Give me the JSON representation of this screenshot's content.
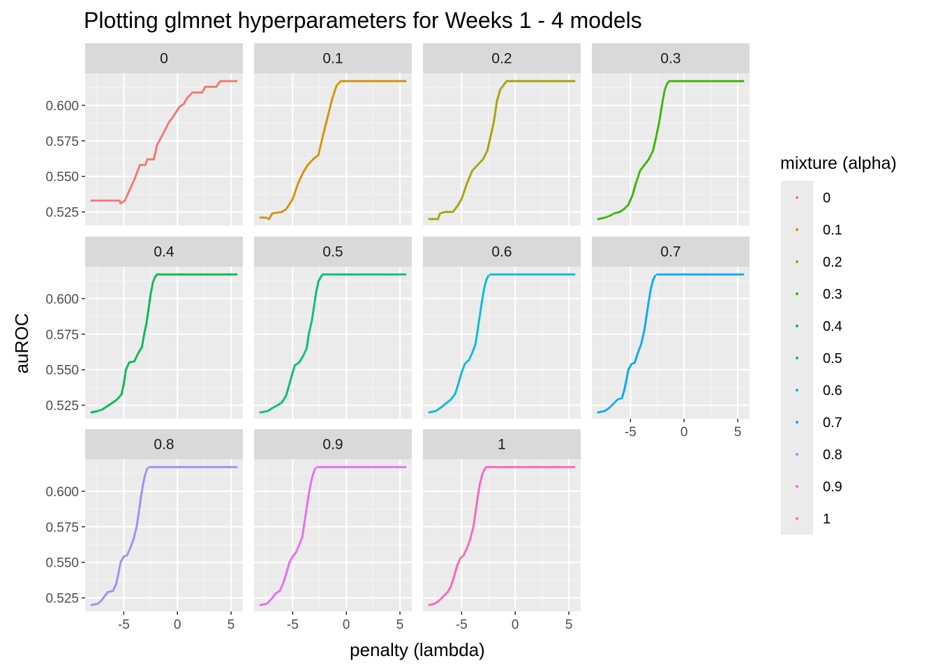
{
  "chart_data": {
    "type": "scatter",
    "title": "Plotting glmnet hyperparameters for Weeks 1 - 4 models",
    "xlabel": "penalty (lambda)",
    "ylabel": "auROC",
    "xlim": [
      -8.6,
      6.1
    ],
    "ylim": [
      0.5155,
      0.6225
    ],
    "x_ticks": [
      -5,
      0,
      5
    ],
    "x_tick_labels": [
      "-5",
      "0",
      "5"
    ],
    "y_ticks": [
      0.525,
      0.55,
      0.575,
      0.6
    ],
    "y_tick_labels": [
      "0.525",
      "0.550",
      "0.575",
      "0.600"
    ],
    "grid": true,
    "legend": {
      "title": "mixture (alpha)",
      "position": "right"
    },
    "facets": [
      {
        "label": "0",
        "color": "#F8766D",
        "points": [
          [
            -8.0,
            0.533
          ],
          [
            -5.4,
            0.533
          ],
          [
            -5.3,
            0.531
          ],
          [
            -4.9,
            0.533
          ],
          [
            -4.6,
            0.538
          ],
          [
            -4.0,
            0.548
          ],
          [
            -3.5,
            0.558
          ],
          [
            -3.0,
            0.558
          ],
          [
            -2.8,
            0.562
          ],
          [
            -2.2,
            0.562
          ],
          [
            -1.9,
            0.572
          ],
          [
            -1.2,
            0.582
          ],
          [
            -0.8,
            0.588
          ],
          [
            -0.4,
            0.592
          ],
          [
            0.2,
            0.599
          ],
          [
            0.6,
            0.601
          ],
          [
            0.9,
            0.605
          ],
          [
            1.4,
            0.609
          ],
          [
            2.3,
            0.609
          ],
          [
            2.6,
            0.613
          ],
          [
            3.6,
            0.613
          ],
          [
            4.0,
            0.617
          ],
          [
            5.5,
            0.617
          ]
        ]
      },
      {
        "label": "0.1",
        "color": "#D89000",
        "points": [
          [
            -8.0,
            0.521
          ],
          [
            -7.5,
            0.521
          ],
          [
            -7.2,
            0.52
          ],
          [
            -6.9,
            0.524
          ],
          [
            -6.0,
            0.525
          ],
          [
            -5.6,
            0.527
          ],
          [
            -5.0,
            0.534
          ],
          [
            -4.5,
            0.545
          ],
          [
            -4.0,
            0.553
          ],
          [
            -3.6,
            0.558
          ],
          [
            -3.1,
            0.562
          ],
          [
            -2.6,
            0.565
          ],
          [
            -2.2,
            0.578
          ],
          [
            -1.8,
            0.59
          ],
          [
            -1.3,
            0.605
          ],
          [
            -0.9,
            0.614
          ],
          [
            -0.5,
            0.617
          ],
          [
            5.5,
            0.617
          ]
        ]
      },
      {
        "label": "0.2",
        "color": "#A3A500",
        "points": [
          [
            -8.0,
            0.52
          ],
          [
            -7.2,
            0.52
          ],
          [
            -7.0,
            0.524
          ],
          [
            -6.5,
            0.525
          ],
          [
            -5.8,
            0.525
          ],
          [
            -5.4,
            0.529
          ],
          [
            -5.0,
            0.534
          ],
          [
            -4.5,
            0.545
          ],
          [
            -4.0,
            0.554
          ],
          [
            -3.5,
            0.558
          ],
          [
            -3.0,
            0.562
          ],
          [
            -2.6,
            0.568
          ],
          [
            -2.3,
            0.578
          ],
          [
            -2.0,
            0.588
          ],
          [
            -1.7,
            0.603
          ],
          [
            -1.4,
            0.611
          ],
          [
            -1.0,
            0.615
          ],
          [
            -0.8,
            0.617
          ],
          [
            5.5,
            0.617
          ]
        ]
      },
      {
        "label": "0.3",
        "color": "#39B600",
        "points": [
          [
            -8.0,
            0.52
          ],
          [
            -7.4,
            0.521
          ],
          [
            -7.0,
            0.522
          ],
          [
            -6.5,
            0.524
          ],
          [
            -6.0,
            0.525
          ],
          [
            -5.6,
            0.527
          ],
          [
            -5.2,
            0.53
          ],
          [
            -4.8,
            0.537
          ],
          [
            -4.5,
            0.545
          ],
          [
            -4.1,
            0.554
          ],
          [
            -3.7,
            0.558
          ],
          [
            -3.3,
            0.562
          ],
          [
            -2.9,
            0.568
          ],
          [
            -2.6,
            0.578
          ],
          [
            -2.3,
            0.589
          ],
          [
            -2.0,
            0.603
          ],
          [
            -1.8,
            0.611
          ],
          [
            -1.6,
            0.615
          ],
          [
            -1.4,
            0.617
          ],
          [
            5.5,
            0.617
          ]
        ]
      },
      {
        "label": "0.4",
        "color": "#00BB4E",
        "points": [
          [
            -8.0,
            0.52
          ],
          [
            -7.4,
            0.521
          ],
          [
            -7.0,
            0.522
          ],
          [
            -6.6,
            0.524
          ],
          [
            -6.2,
            0.526
          ],
          [
            -5.8,
            0.528
          ],
          [
            -5.5,
            0.53
          ],
          [
            -5.2,
            0.533
          ],
          [
            -5.0,
            0.54
          ],
          [
            -4.8,
            0.55
          ],
          [
            -4.5,
            0.555
          ],
          [
            -4.0,
            0.556
          ],
          [
            -3.7,
            0.561
          ],
          [
            -3.3,
            0.566
          ],
          [
            -3.1,
            0.575
          ],
          [
            -2.9,
            0.582
          ],
          [
            -2.7,
            0.592
          ],
          [
            -2.5,
            0.603
          ],
          [
            -2.3,
            0.611
          ],
          [
            -2.1,
            0.615
          ],
          [
            -1.9,
            0.617
          ],
          [
            5.5,
            0.617
          ]
        ]
      },
      {
        "label": "0.5",
        "color": "#00BF7D",
        "points": [
          [
            -8.0,
            0.52
          ],
          [
            -7.3,
            0.521
          ],
          [
            -6.9,
            0.523
          ],
          [
            -6.4,
            0.525
          ],
          [
            -6.0,
            0.527
          ],
          [
            -5.6,
            0.532
          ],
          [
            -5.3,
            0.54
          ],
          [
            -5.0,
            0.548
          ],
          [
            -4.8,
            0.553
          ],
          [
            -4.4,
            0.555
          ],
          [
            -4.0,
            0.56
          ],
          [
            -3.7,
            0.565
          ],
          [
            -3.5,
            0.575
          ],
          [
            -3.2,
            0.585
          ],
          [
            -3.0,
            0.595
          ],
          [
            -2.8,
            0.605
          ],
          [
            -2.6,
            0.612
          ],
          [
            -2.4,
            0.615
          ],
          [
            -2.2,
            0.617
          ],
          [
            5.5,
            0.617
          ]
        ]
      },
      {
        "label": "0.6",
        "color": "#00BCD8",
        "points": [
          [
            -8.0,
            0.52
          ],
          [
            -7.4,
            0.521
          ],
          [
            -7.0,
            0.523
          ],
          [
            -6.5,
            0.526
          ],
          [
            -6.0,
            0.529
          ],
          [
            -5.6,
            0.533
          ],
          [
            -5.3,
            0.54
          ],
          [
            -5.0,
            0.548
          ],
          [
            -4.7,
            0.554
          ],
          [
            -4.3,
            0.557
          ],
          [
            -4.0,
            0.562
          ],
          [
            -3.7,
            0.568
          ],
          [
            -3.5,
            0.578
          ],
          [
            -3.3,
            0.588
          ],
          [
            -3.1,
            0.598
          ],
          [
            -2.9,
            0.607
          ],
          [
            -2.7,
            0.613
          ],
          [
            -2.5,
            0.616
          ],
          [
            -2.3,
            0.617
          ],
          [
            5.5,
            0.617
          ]
        ]
      },
      {
        "label": "0.7",
        "color": "#00A9FF",
        "points": [
          [
            -8.0,
            0.52
          ],
          [
            -7.4,
            0.521
          ],
          [
            -7.0,
            0.523
          ],
          [
            -6.6,
            0.526
          ],
          [
            -6.2,
            0.529
          ],
          [
            -5.8,
            0.53
          ],
          [
            -5.6,
            0.535
          ],
          [
            -5.4,
            0.542
          ],
          [
            -5.2,
            0.55
          ],
          [
            -4.9,
            0.554
          ],
          [
            -4.6,
            0.555
          ],
          [
            -4.3,
            0.562
          ],
          [
            -4.0,
            0.568
          ],
          [
            -3.7,
            0.578
          ],
          [
            -3.5,
            0.588
          ],
          [
            -3.3,
            0.598
          ],
          [
            -3.1,
            0.607
          ],
          [
            -2.9,
            0.613
          ],
          [
            -2.7,
            0.616
          ],
          [
            -2.5,
            0.617
          ],
          [
            5.5,
            0.617
          ]
        ]
      },
      {
        "label": "0.8",
        "color": "#9590FF",
        "points": [
          [
            -8.0,
            0.52
          ],
          [
            -7.4,
            0.521
          ],
          [
            -7.1,
            0.523
          ],
          [
            -6.8,
            0.526
          ],
          [
            -6.5,
            0.529
          ],
          [
            -6.0,
            0.53
          ],
          [
            -5.7,
            0.535
          ],
          [
            -5.5,
            0.542
          ],
          [
            -5.3,
            0.55
          ],
          [
            -5.0,
            0.554
          ],
          [
            -4.7,
            0.555
          ],
          [
            -4.4,
            0.56
          ],
          [
            -4.1,
            0.566
          ],
          [
            -3.8,
            0.575
          ],
          [
            -3.6,
            0.585
          ],
          [
            -3.4,
            0.596
          ],
          [
            -3.2,
            0.605
          ],
          [
            -3.0,
            0.612
          ],
          [
            -2.8,
            0.616
          ],
          [
            -2.6,
            0.617
          ],
          [
            5.5,
            0.617
          ]
        ]
      },
      {
        "label": "0.9",
        "color": "#E76BF3",
        "points": [
          [
            -8.0,
            0.52
          ],
          [
            -7.4,
            0.521
          ],
          [
            -7.0,
            0.524
          ],
          [
            -6.6,
            0.528
          ],
          [
            -6.2,
            0.53
          ],
          [
            -5.9,
            0.535
          ],
          [
            -5.6,
            0.542
          ],
          [
            -5.3,
            0.55
          ],
          [
            -5.0,
            0.554
          ],
          [
            -4.7,
            0.557
          ],
          [
            -4.4,
            0.562
          ],
          [
            -4.1,
            0.568
          ],
          [
            -3.9,
            0.578
          ],
          [
            -3.7,
            0.588
          ],
          [
            -3.5,
            0.598
          ],
          [
            -3.3,
            0.606
          ],
          [
            -3.1,
            0.612
          ],
          [
            -2.9,
            0.616
          ],
          [
            -2.7,
            0.617
          ],
          [
            5.5,
            0.617
          ]
        ]
      },
      {
        "label": "1",
        "color": "#FF62BC",
        "points": [
          [
            -8.0,
            0.52
          ],
          [
            -7.5,
            0.521
          ],
          [
            -7.1,
            0.523
          ],
          [
            -6.7,
            0.526
          ],
          [
            -6.3,
            0.529
          ],
          [
            -6.0,
            0.533
          ],
          [
            -5.7,
            0.54
          ],
          [
            -5.4,
            0.548
          ],
          [
            -5.1,
            0.553
          ],
          [
            -4.8,
            0.555
          ],
          [
            -4.5,
            0.56
          ],
          [
            -4.2,
            0.566
          ],
          [
            -3.9,
            0.575
          ],
          [
            -3.7,
            0.585
          ],
          [
            -3.5,
            0.596
          ],
          [
            -3.3,
            0.605
          ],
          [
            -3.1,
            0.611
          ],
          [
            -2.9,
            0.615
          ],
          [
            -2.7,
            0.617
          ],
          [
            5.5,
            0.617
          ]
        ]
      }
    ]
  }
}
